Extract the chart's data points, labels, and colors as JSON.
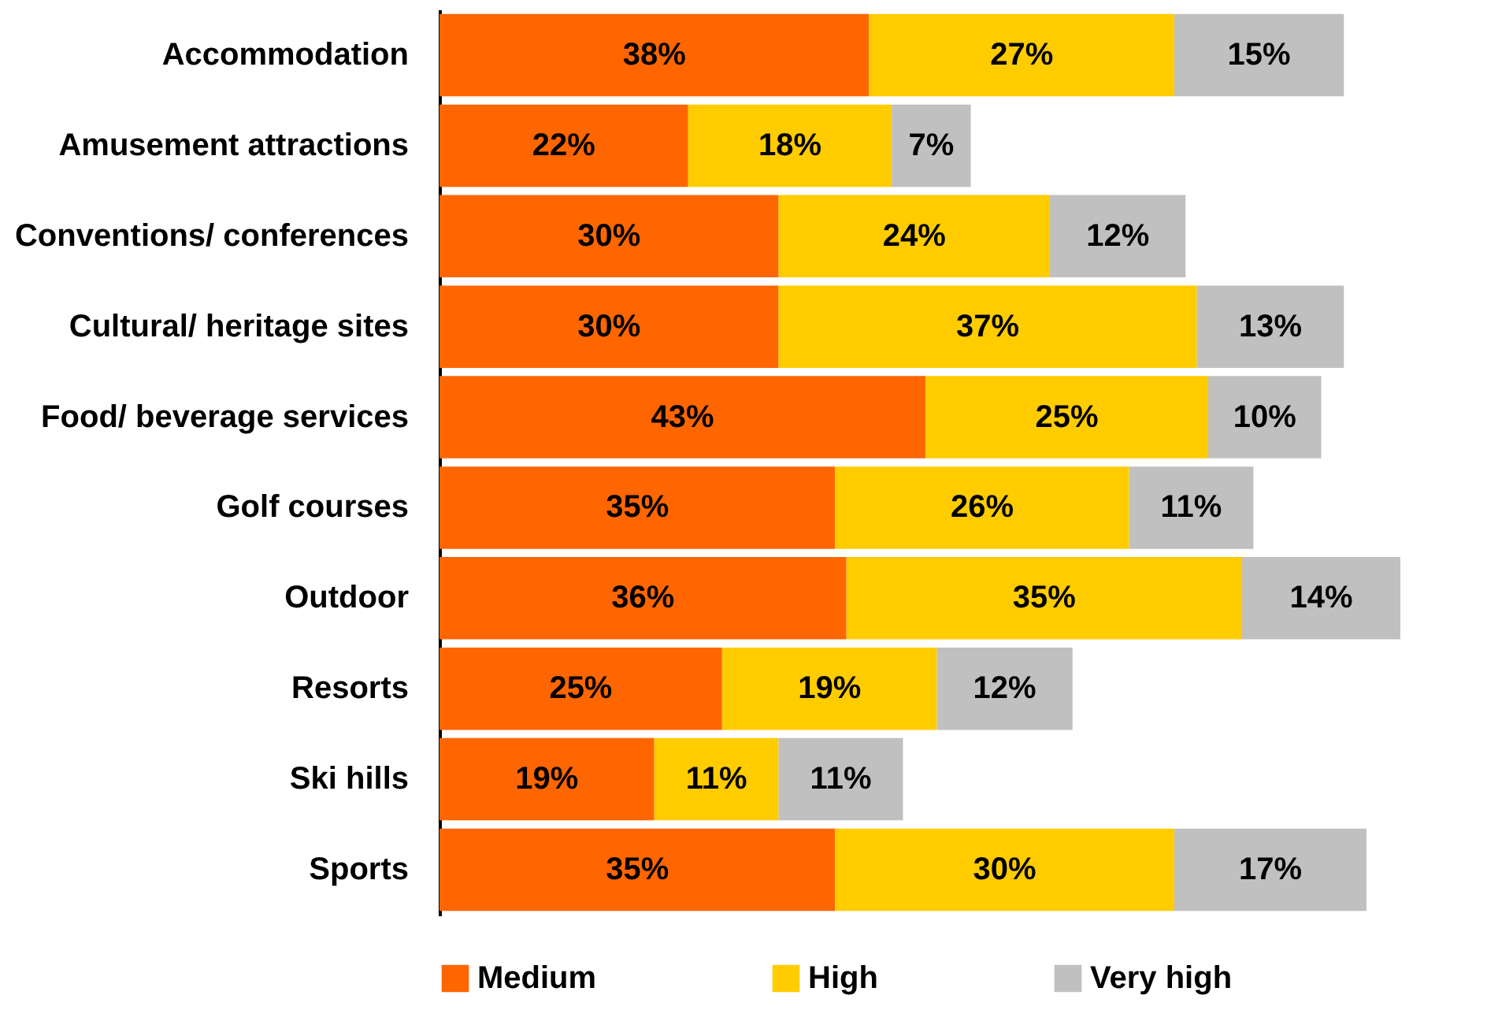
{
  "chart_data": {
    "type": "bar",
    "orientation": "horizontal",
    "stacked": true,
    "legend": "bottom",
    "categories": [
      "Accommodation",
      "Amusement attractions",
      "Conventions/ conferences",
      "Cultural/ heritage sites",
      "Food/ beverage services",
      "Golf courses",
      "Outdoor",
      "Resorts",
      "Ski hills",
      "Sports"
    ],
    "series": [
      {
        "name": "Medium",
        "color": "#ff6600",
        "values": [
          38,
          22,
          30,
          30,
          43,
          35,
          36,
          25,
          19,
          35
        ],
        "value_labels": [
          "38%",
          "22%",
          "30%",
          "30%",
          "43%",
          "35%",
          "36%",
          "25%",
          "19%",
          "35%"
        ]
      },
      {
        "name": "High",
        "color": "#ffcc00",
        "values": [
          27,
          18,
          24,
          37,
          25,
          26,
          35,
          19,
          11,
          30
        ],
        "value_labels": [
          "27%",
          "18%",
          "24%",
          "37%",
          "25%",
          "26%",
          "35%",
          "19%",
          "11%",
          "30%"
        ]
      },
      {
        "name": "Very high",
        "color": "#c0c0c0",
        "values": [
          15,
          7,
          12,
          13,
          10,
          11,
          14,
          12,
          11,
          17
        ],
        "value_labels": [
          "15%",
          "7%",
          "12%",
          "13%",
          "10%",
          "11%",
          "14%",
          "12%",
          "11%",
          "17%"
        ]
      }
    ]
  }
}
